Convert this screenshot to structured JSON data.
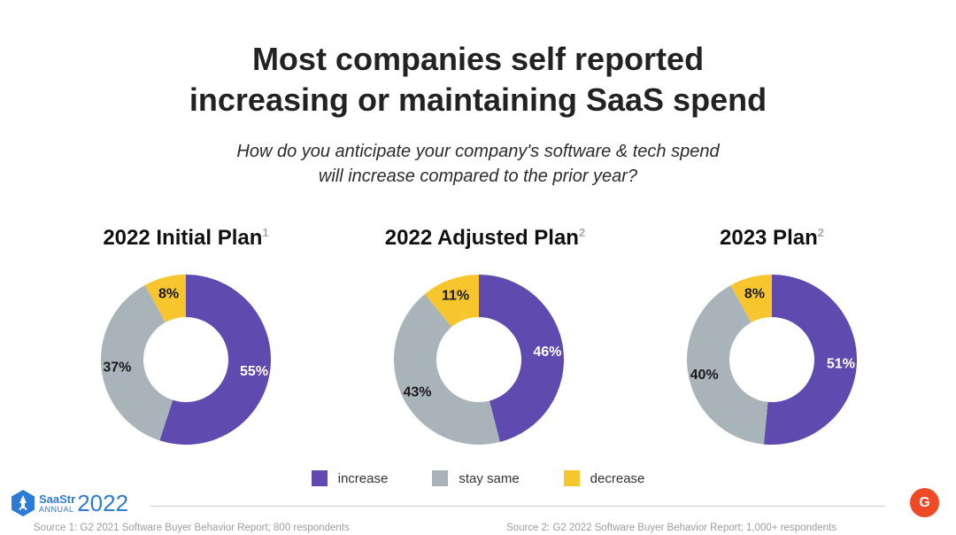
{
  "title_line1": "Most companies self reported",
  "title_line2": "increasing or maintaining SaaS spend",
  "subtitle_line1": "How do you anticipate your company's software & tech spend",
  "subtitle_line2": "will increase compared to the prior year?",
  "colors": {
    "increase": "#5f4ab0",
    "stay_same": "#a9b4ba",
    "decrease": "#f7c62f"
  },
  "chart_data": [
    {
      "type": "pie",
      "title": "2022 Initial Plan",
      "superscript": "1",
      "categories": [
        "increase",
        "stay same",
        "decrease"
      ],
      "values": [
        55,
        37,
        8
      ],
      "labels": [
        "55%",
        "37%",
        "8%"
      ]
    },
    {
      "type": "pie",
      "title": "2022 Adjusted Plan",
      "superscript": "2",
      "categories": [
        "increase",
        "stay same",
        "decrease"
      ],
      "values": [
        46,
        43,
        11
      ],
      "labels": [
        "46%",
        "43%",
        "11%"
      ]
    },
    {
      "type": "pie",
      "title": "2023 Plan",
      "superscript": "2",
      "categories": [
        "increase",
        "stay same",
        "decrease"
      ],
      "values": [
        51,
        40,
        8
      ],
      "labels": [
        "51%",
        "40%",
        "8%"
      ]
    }
  ],
  "legend": [
    "increase",
    "stay same",
    "decrease"
  ],
  "logo": {
    "brand": "SaaStr",
    "sub": "ANNUAL",
    "year": "2022"
  },
  "g2_badge": "G",
  "source1": "Source 1: G2 2021 Software Buyer Behavior Report; 800  respondents",
  "source2": "Source 2: G2 2022 Software Buyer Behavior Report; 1,000+ respondents"
}
